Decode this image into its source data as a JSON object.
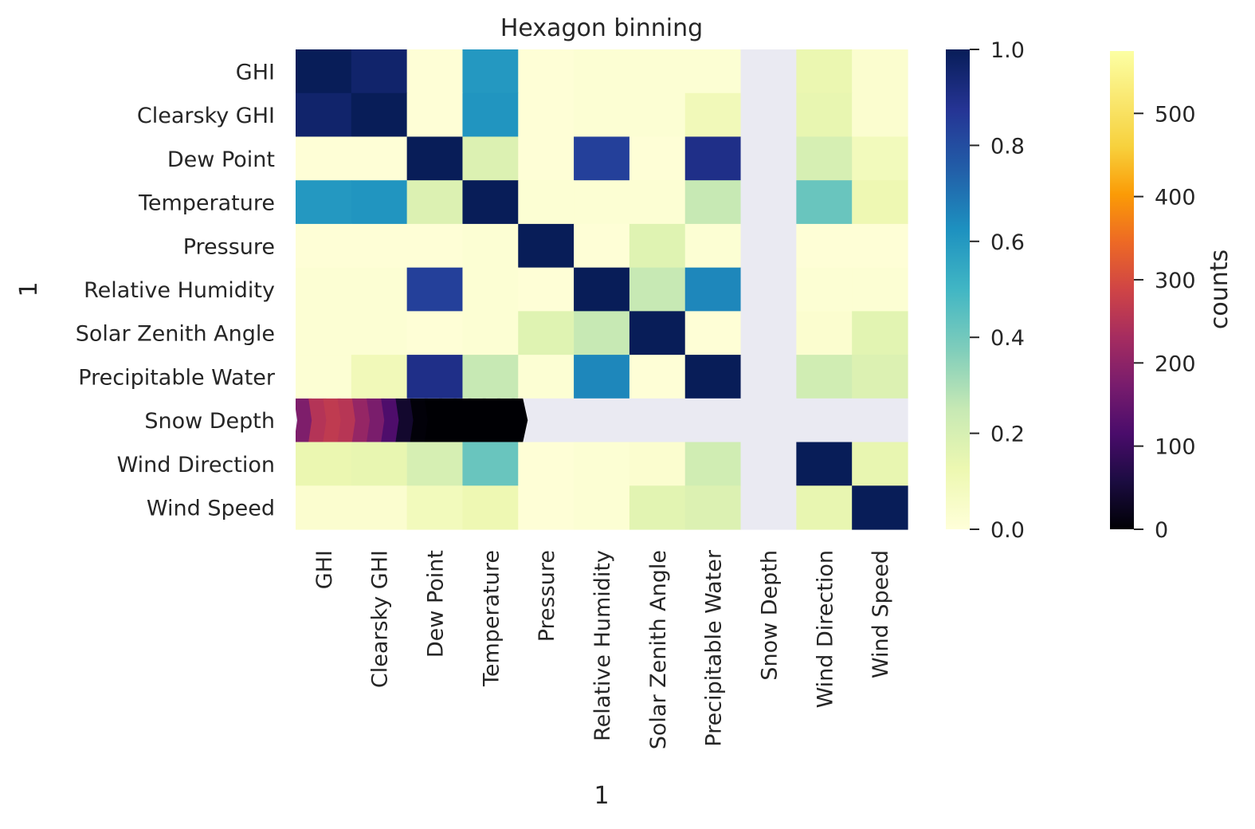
{
  "chart_data": {
    "type": "heatmap",
    "title": "Hexagon binning",
    "xlabel": "1",
    "ylabel": "1",
    "categories": [
      "GHI",
      "Clearsky GHI",
      "Dew Point",
      "Temperature",
      "Pressure",
      "Relative Humidity",
      "Solar Zenith Angle",
      "Precipitable Water",
      "Snow Depth",
      "Wind Direction",
      "Wind Speed"
    ],
    "values": [
      [
        1.0,
        0.96,
        0.01,
        0.6,
        0.01,
        0.02,
        0.02,
        0.02,
        null,
        0.13,
        0.03
      ],
      [
        0.96,
        1.0,
        0.01,
        0.61,
        0.01,
        0.02,
        0.02,
        0.1,
        null,
        0.14,
        0.03
      ],
      [
        0.01,
        0.01,
        1.0,
        0.18,
        0.01,
        0.84,
        0.01,
        0.9,
        null,
        0.2,
        0.09
      ],
      [
        0.6,
        0.61,
        0.18,
        1.0,
        0.02,
        0.02,
        0.02,
        0.25,
        null,
        0.42,
        0.12
      ],
      [
        0.01,
        0.01,
        0.01,
        0.02,
        1.0,
        0.01,
        0.17,
        0.02,
        null,
        0.01,
        0.01
      ],
      [
        0.02,
        0.02,
        0.84,
        0.02,
        0.01,
        1.0,
        0.25,
        0.65,
        null,
        0.02,
        0.02
      ],
      [
        0.02,
        0.02,
        0.01,
        0.02,
        0.17,
        0.25,
        1.0,
        0.01,
        null,
        0.03,
        0.16
      ],
      [
        0.02,
        0.1,
        0.9,
        0.25,
        0.02,
        0.65,
        0.01,
        1.0,
        null,
        0.22,
        0.18
      ],
      [
        null,
        null,
        null,
        null,
        null,
        null,
        null,
        null,
        null,
        null,
        null
      ],
      [
        0.13,
        0.14,
        0.2,
        0.42,
        0.01,
        0.02,
        0.03,
        0.22,
        null,
        1.0,
        0.14
      ],
      [
        0.03,
        0.03,
        0.09,
        0.12,
        0.01,
        0.02,
        0.16,
        0.18,
        null,
        0.14,
        1.0
      ]
    ],
    "vlim": [
      0.0,
      1.0
    ],
    "colorbar_ticks": [
      "0.0",
      "0.2",
      "0.4",
      "0.6",
      "0.8",
      "1.0"
    ],
    "colormap": "YlGnBu",
    "missing_color": "#eaeaf2",
    "hexbin_overlay": {
      "row": "Snow Depth",
      "colormap": "inferno",
      "colorbar_label": "counts",
      "colorbar_ticks": [
        "0",
        "100",
        "200",
        "300",
        "400",
        "500"
      ],
      "colorbar_range": [
        0,
        575
      ],
      "counts": [
        180,
        250,
        265,
        255,
        210,
        175,
        120,
        40,
        5,
        0,
        0,
        0,
        0,
        0,
        0,
        0
      ]
    }
  }
}
